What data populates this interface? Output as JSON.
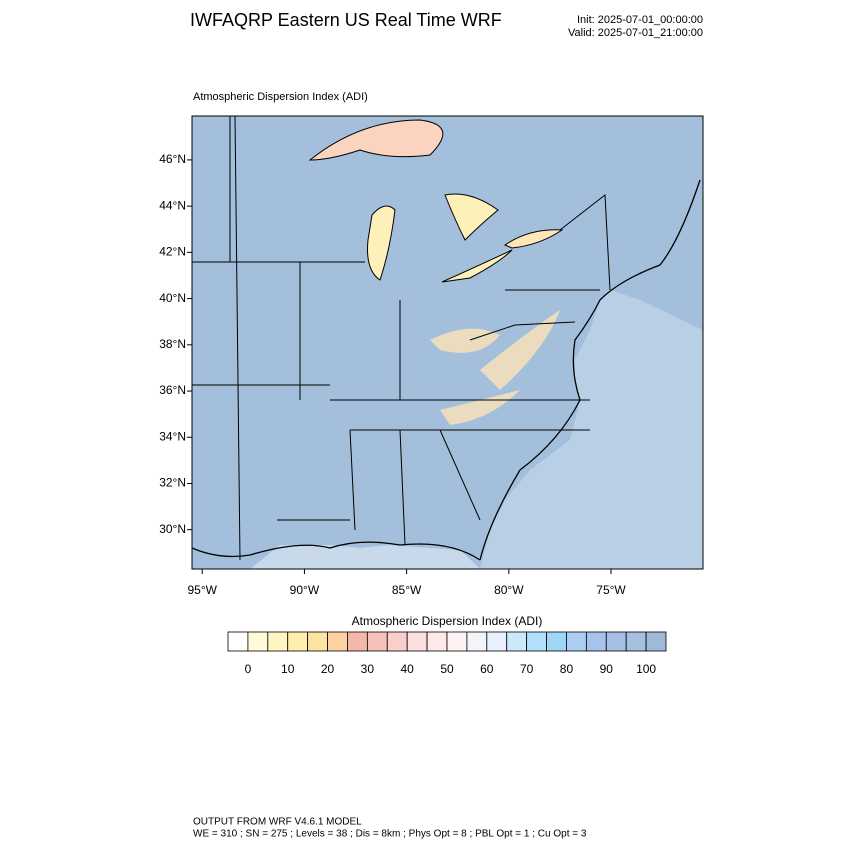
{
  "header": {
    "title": "IWFAQRP Eastern US Real Time WRF",
    "init": "Init: 2025-07-01_00:00:00",
    "valid": "Valid: 2025-07-01_21:00:00"
  },
  "map": {
    "subtitle": "Atmospheric Dispersion Index   (ADI)",
    "latlim": [
      28.3,
      47.9
    ],
    "lonlim": [
      -95.5,
      -70.5
    ],
    "latticks": [
      {
        "value": 46,
        "label": "46°N"
      },
      {
        "value": 44,
        "label": "44°N"
      },
      {
        "value": 42,
        "label": "42°N"
      },
      {
        "value": 40,
        "label": "40°N"
      },
      {
        "value": 38,
        "label": "38°N"
      },
      {
        "value": 36,
        "label": "36°N"
      },
      {
        "value": 34,
        "label": "34°N"
      },
      {
        "value": 32,
        "label": "32°N"
      },
      {
        "value": 30,
        "label": "30°N"
      }
    ],
    "lonticks": [
      {
        "value": -95,
        "label": "95°W"
      },
      {
        "value": -90,
        "label": "90°W"
      },
      {
        "value": -85,
        "label": "85°W"
      },
      {
        "value": -80,
        "label": "80°W"
      },
      {
        "value": -75,
        "label": "75°W"
      }
    ]
  },
  "colorbar": {
    "title": "Atmospheric Dispersion Index  (ADI)",
    "range": [
      -5,
      105
    ],
    "colors": [
      "#ffffff",
      "#fffbd9",
      "#fff5c0",
      "#ffeeb0",
      "#fde3a2",
      "#fbd2a0",
      "#f5b7a8",
      "#f6c0bb",
      "#f9cfcc",
      "#fbdede",
      "#fde9e9",
      "#fdf3f3",
      "#f4f4fb",
      "#e8f0fb",
      "#cce8fb",
      "#b2e0fa",
      "#9fd6f8",
      "#a9cdf3",
      "#a6c3ee",
      "#a7bfe7",
      "#a5bfe0",
      "#a0b9d8"
    ],
    "ticks": [
      0,
      10,
      20,
      30,
      40,
      50,
      60,
      70,
      80,
      90,
      100
    ]
  },
  "footer": {
    "line1": "OUTPUT FROM WRF V4.6.1 MODEL",
    "line2": "WE = 310 ; SN = 275 ; Levels = 38 ; Dis = 8km ; Phys Opt = 8 ; PBL Opt = 1 ; Cu Opt = 3"
  }
}
